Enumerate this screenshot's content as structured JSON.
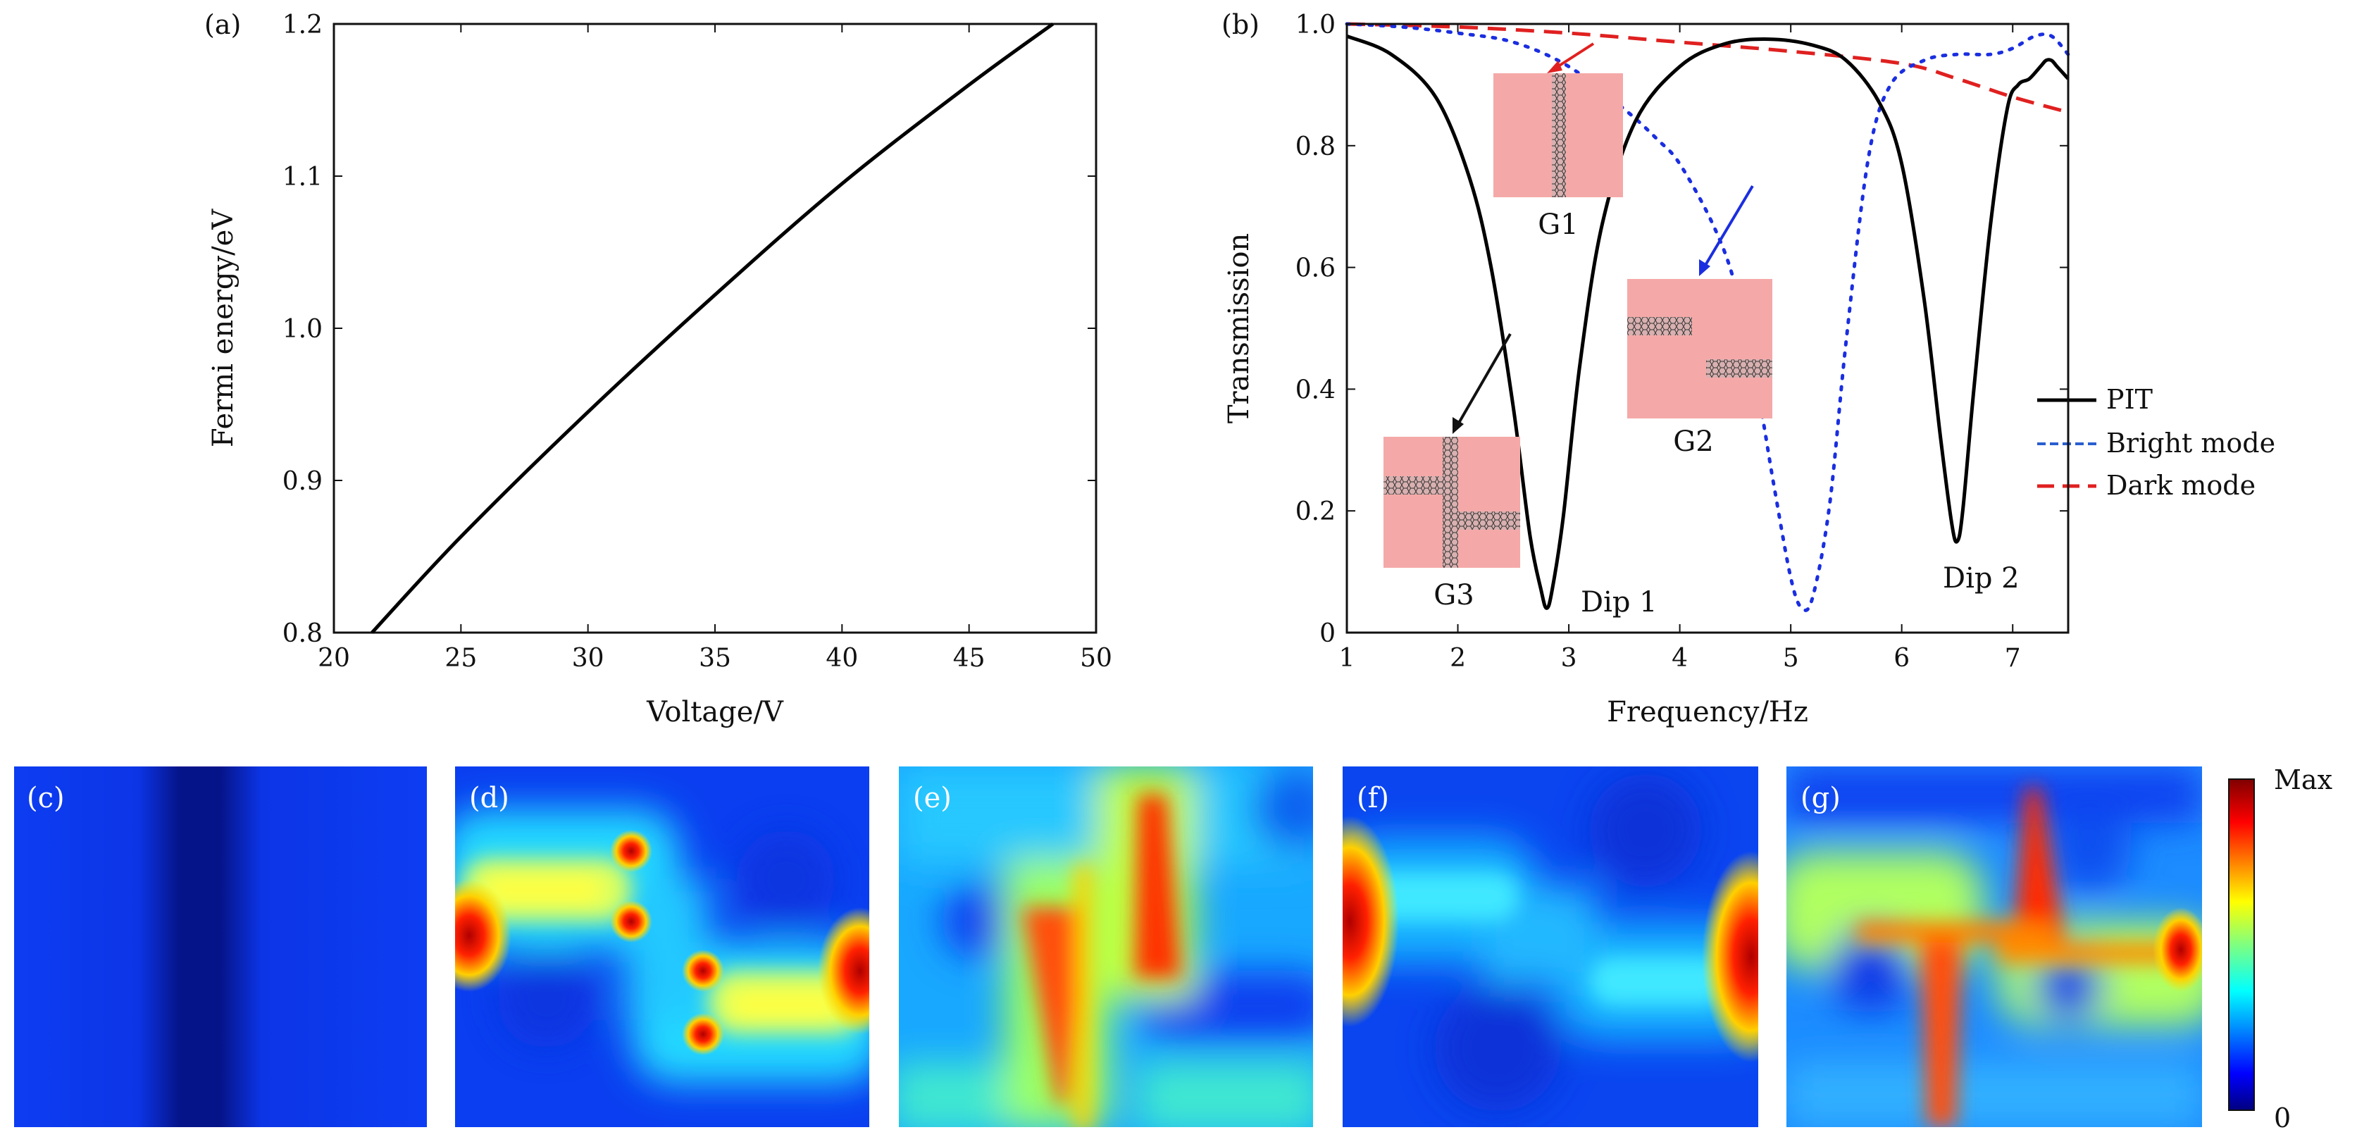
{
  "chart_data": [
    {
      "panel": "(a)",
      "type": "line",
      "xlabel": "Voltage/V",
      "ylabel": "Fermi energy/eV",
      "xlim": [
        20,
        50
      ],
      "ylim": [
        0.8,
        1.2
      ],
      "xticks": [
        "20",
        "25",
        "30",
        "35",
        "40",
        "45",
        "50"
      ],
      "yticks": [
        "0.8",
        "0.9",
        "1.0",
        "1.1",
        "1.2"
      ],
      "series": [
        {
          "name": "Fermi energy",
          "color": "#000000",
          "x": [
            21.5,
            25,
            30,
            35,
            40,
            45,
            48.3
          ],
          "y": [
            0.8,
            0.863,
            0.945,
            1.022,
            1.095,
            1.16,
            1.2
          ]
        }
      ]
    },
    {
      "panel": "(b)",
      "type": "line",
      "xlabel": "Frequency/Hz",
      "ylabel": "Transmission",
      "xlim": [
        1,
        7.5
      ],
      "ylim": [
        0,
        1.0
      ],
      "xticks": [
        "1",
        "2",
        "3",
        "4",
        "5",
        "6",
        "7"
      ],
      "yticks": [
        "0",
        "0.2",
        "0.4",
        "0.6",
        "0.8",
        "1.0"
      ],
      "legend_position": "right",
      "series": [
        {
          "name": "PIT",
          "style": "solid",
          "color": "#000000",
          "x": [
            1.0,
            1.4,
            1.8,
            2.1,
            2.3,
            2.5,
            2.65,
            2.75,
            2.8,
            2.85,
            2.95,
            3.1,
            3.3,
            3.6,
            4.0,
            4.4,
            4.8,
            5.2,
            5.5,
            5.8,
            6.0,
            6.2,
            6.35,
            6.45,
            6.5,
            6.55,
            6.65,
            6.8,
            6.95,
            7.05,
            7.15,
            7.25,
            7.3,
            7.35,
            7.4,
            7.45,
            7.5
          ],
          "y": [
            0.98,
            0.95,
            0.88,
            0.75,
            0.6,
            0.37,
            0.16,
            0.07,
            0.04,
            0.07,
            0.19,
            0.44,
            0.67,
            0.84,
            0.93,
            0.967,
            0.975,
            0.965,
            0.94,
            0.87,
            0.77,
            0.55,
            0.32,
            0.18,
            0.15,
            0.2,
            0.4,
            0.67,
            0.86,
            0.9,
            0.91,
            0.93,
            0.94,
            0.94,
            0.93,
            0.92,
            0.91
          ]
        },
        {
          "name": "Bright mode",
          "style": "dotted",
          "color": "#1a2ee0",
          "x": [
            1.0,
            1.5,
            2.0,
            2.5,
            3.0,
            3.5,
            3.8,
            4.0,
            4.3,
            4.5,
            4.7,
            4.85,
            5.0,
            5.1,
            5.2,
            5.35,
            5.5,
            5.7,
            5.9,
            6.2,
            6.5,
            6.8,
            7.0,
            7.2,
            7.35,
            7.5
          ],
          "y": [
            1.0,
            0.995,
            0.985,
            0.97,
            0.93,
            0.86,
            0.81,
            0.77,
            0.67,
            0.57,
            0.4,
            0.24,
            0.09,
            0.04,
            0.06,
            0.21,
            0.48,
            0.78,
            0.9,
            0.94,
            0.95,
            0.95,
            0.96,
            0.98,
            0.98,
            0.95
          ]
        },
        {
          "name": "Dark mode",
          "style": "dashed",
          "color": "#e02020",
          "x": [
            1.0,
            2.0,
            3.0,
            4.0,
            5.0,
            6.0,
            6.5,
            7.0,
            7.5
          ],
          "y": [
            1.0,
            0.995,
            0.985,
            0.97,
            0.955,
            0.935,
            0.91,
            0.88,
            0.855
          ]
        }
      ],
      "annotations": [
        {
          "text": "Dip 1",
          "x": 3.3,
          "y": 0.045
        },
        {
          "text": "Dip 2",
          "x": 6.9,
          "y": 0.09
        },
        {
          "text": "G1",
          "x": 2.7,
          "y": 0.65
        },
        {
          "text": "G2",
          "x": 3.9,
          "y": 0.3
        },
        {
          "text": "G3",
          "x": 1.85,
          "y": 0.06
        }
      ]
    }
  ],
  "field_maps": [
    {
      "label": "(c)"
    },
    {
      "label": "(d)"
    },
    {
      "label": "(e)"
    },
    {
      "label": "(f)"
    },
    {
      "label": "(g)"
    }
  ],
  "colorbar": {
    "max_label": "Max",
    "min_label": "0"
  },
  "colors": {
    "inset_pink": "#f4a9a8",
    "jet_dark_blue": "#00008f",
    "jet_blue": "#0a3ef0",
    "jet_red": "#c00000"
  }
}
